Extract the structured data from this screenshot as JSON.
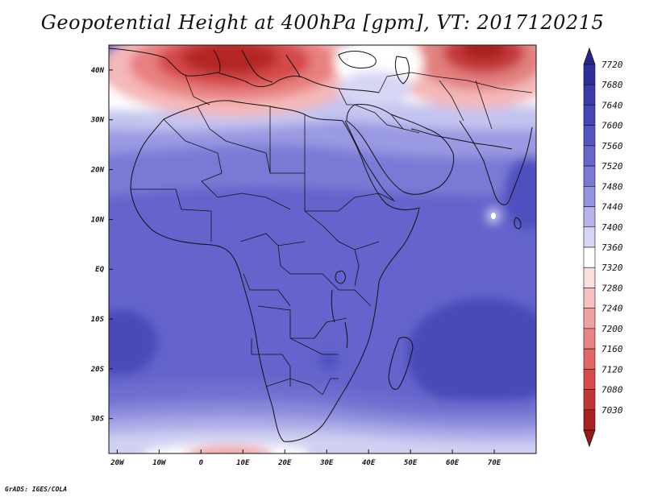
{
  "title": "Geopotential Height at 400hPa [gpm], VT: 2017120215",
  "credit": "GrADS: IGES/COLA",
  "map": {
    "lon_range": [
      -22,
      80
    ],
    "lat_range": [
      -37,
      45
    ],
    "lon_ticks": [
      {
        "lon": -20,
        "label": "20W"
      },
      {
        "lon": -10,
        "label": "10W"
      },
      {
        "lon": 0,
        "label": "0"
      },
      {
        "lon": 10,
        "label": "10E"
      },
      {
        "lon": 20,
        "label": "20E"
      },
      {
        "lon": 30,
        "label": "30E"
      },
      {
        "lon": 40,
        "label": "40E"
      },
      {
        "lon": 50,
        "label": "50E"
      },
      {
        "lon": 60,
        "label": "60E"
      },
      {
        "lon": 70,
        "label": "70E"
      }
    ],
    "lat_ticks": [
      {
        "lat": 40,
        "label": "40N"
      },
      {
        "lat": 30,
        "label": "30N"
      },
      {
        "lat": 20,
        "label": "20N"
      },
      {
        "lat": 10,
        "label": "10N"
      },
      {
        "lat": 0,
        "label": "EQ"
      },
      {
        "lat": -10,
        "label": "10S"
      },
      {
        "lat": -20,
        "label": "20S"
      },
      {
        "lat": -30,
        "label": "30S"
      }
    ]
  },
  "colorbar": {
    "levels": [
      {
        "label": "7720",
        "color": "#2e2e9c"
      },
      {
        "label": "7680",
        "color": "#3a3aaa"
      },
      {
        "label": "7640",
        "color": "#4545b8"
      },
      {
        "label": "7600",
        "color": "#5454c2"
      },
      {
        "label": "7560",
        "color": "#6666cc"
      },
      {
        "label": "7520",
        "color": "#7a7ad6"
      },
      {
        "label": "7480",
        "color": "#9494e0"
      },
      {
        "label": "7440",
        "color": "#b4b4ea"
      },
      {
        "label": "7400",
        "color": "#d6d6f4"
      },
      {
        "label": "7360",
        "color": "#ffffff"
      },
      {
        "label": "7320",
        "color": "#fbdede"
      },
      {
        "label": "7280",
        "color": "#f6c0c0"
      },
      {
        "label": "7240",
        "color": "#f0a2a2"
      },
      {
        "label": "7200",
        "color": "#ea8484"
      },
      {
        "label": "7160",
        "color": "#e26666"
      },
      {
        "label": "7120",
        "color": "#d84a4a"
      },
      {
        "label": "7080",
        "color": "#c43434"
      },
      {
        "label": "7030",
        "color": "#a82020"
      }
    ],
    "top_arrow_color": "#26268c",
    "bottom_arrow_color": "#961818"
  }
}
